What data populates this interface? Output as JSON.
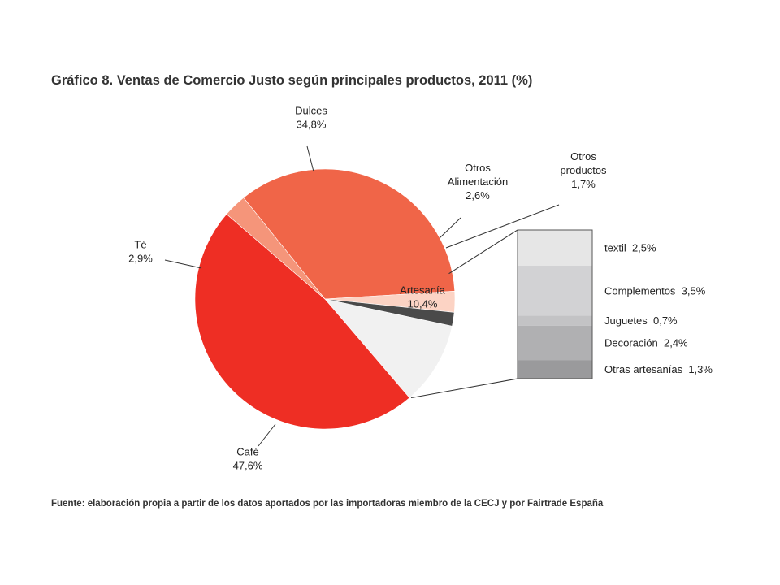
{
  "title": "Gráfico 8. Ventas de Comercio Justo según principales productos, 2011 (%)",
  "source": "Fuente: elaboración propia a partir de los datos aportados por las importadoras miembro de la CECJ y por Fairtrade España",
  "chart_data": {
    "type": "pie",
    "title": "Gráfico 8. Ventas de Comercio Justo según principales productos, 2011 (%)",
    "unit": "%",
    "slices": [
      {
        "label_lines": [
          "Artesanía",
          "10,4%"
        ],
        "value": 10.4,
        "color": "#f1f1f1"
      },
      {
        "label_lines": [
          "Café",
          "47,6%"
        ],
        "value": 47.6,
        "color": "#ee2e24"
      },
      {
        "label_lines": [
          "Té",
          "2,9%"
        ],
        "value": 2.9,
        "color": "#f5957a"
      },
      {
        "label_lines": [
          "Dulces",
          "34,8%"
        ],
        "value": 34.8,
        "color": "#f06548"
      },
      {
        "label_lines": [
          "Otros",
          "Alimentación",
          "2,6%"
        ],
        "value": 2.6,
        "color": "#fcd3c4"
      },
      {
        "label_lines": [
          "Otros",
          "productos",
          "1,7%"
        ],
        "value": 1.7,
        "color": "#4a4a4a"
      }
    ],
    "breakdown": {
      "of": "Artesanía",
      "items": [
        {
          "label": "textil  2,5%",
          "value": 2.5,
          "color": "#e6e6e6"
        },
        {
          "label": "Complementos  3,5%",
          "value": 3.5,
          "color": "#d2d2d4"
        },
        {
          "label": "Juguetes  0,7%",
          "value": 0.7,
          "color": "#c3c3c5"
        },
        {
          "label": "Decoración  2,4%",
          "value": 2.4,
          "color": "#b0b0b2"
        },
        {
          "label": "Otras artesanías  1,3%",
          "value": 1.3,
          "color": "#9a9a9c"
        }
      ]
    }
  }
}
